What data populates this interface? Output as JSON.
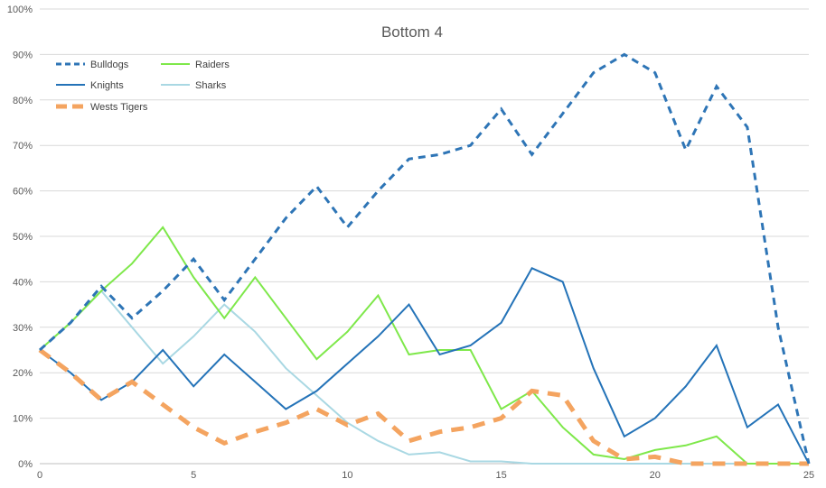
{
  "chart_data": {
    "type": "line",
    "title": "Bottom 4",
    "xlabel": "",
    "ylabel": "",
    "xlim": [
      0,
      25
    ],
    "ylim": [
      0,
      100
    ],
    "x_ticks": [
      0,
      5,
      10,
      15,
      20,
      25
    ],
    "y_ticks": [
      0,
      10,
      20,
      30,
      40,
      50,
      60,
      70,
      80,
      90,
      100
    ],
    "y_tick_suffix": "%",
    "grid": "horizontal",
    "legend_position": "top-left",
    "x": [
      0,
      1,
      2,
      3,
      4,
      5,
      6,
      7,
      8,
      9,
      10,
      11,
      12,
      13,
      14,
      15,
      16,
      17,
      18,
      19,
      20,
      21,
      22,
      23,
      24,
      25
    ],
    "series": [
      {
        "name": "Bulldogs",
        "color": "#2e75b6",
        "style": "dashed",
        "values": [
          25,
          31,
          39,
          32,
          38,
          45,
          36,
          45,
          54,
          61,
          52,
          60,
          67,
          68,
          70,
          78,
          68,
          77,
          86,
          90,
          86,
          69,
          83,
          74,
          30,
          0
        ]
      },
      {
        "name": "Raiders",
        "color": "#7ee84a",
        "style": "solid",
        "values": [
          25,
          31,
          38,
          44,
          52,
          41,
          32,
          41,
          32,
          23,
          29,
          37,
          24,
          25,
          25,
          12,
          16,
          8,
          2,
          1,
          3,
          4,
          6,
          0,
          0,
          0
        ]
      },
      {
        "name": "Knights",
        "color": "#2473b8",
        "style": "solid",
        "values": [
          25,
          20,
          14,
          18,
          25,
          17,
          24,
          18,
          12,
          16,
          22,
          28,
          35,
          24,
          26,
          31,
          43,
          40,
          21,
          6,
          10,
          17,
          26,
          8,
          13,
          0
        ]
      },
      {
        "name": "Sharks",
        "color": "#a9d8e3",
        "style": "solid",
        "values": [
          25,
          31,
          38,
          30,
          22,
          28,
          35,
          29,
          21,
          15,
          9,
          5,
          2,
          2.5,
          0.5,
          0.5,
          0,
          0,
          0,
          0,
          0,
          0,
          0,
          0,
          0,
          0
        ]
      },
      {
        "name": "Wests Tigers",
        "color": "#f4a460",
        "style": "dashed-thick",
        "values": [
          25,
          20,
          14,
          18,
          13,
          8,
          4.5,
          7,
          9,
          12,
          8.5,
          11,
          5,
          7,
          8,
          10,
          16,
          15,
          5,
          1,
          1.5,
          0,
          0,
          0,
          0,
          0
        ]
      }
    ]
  }
}
